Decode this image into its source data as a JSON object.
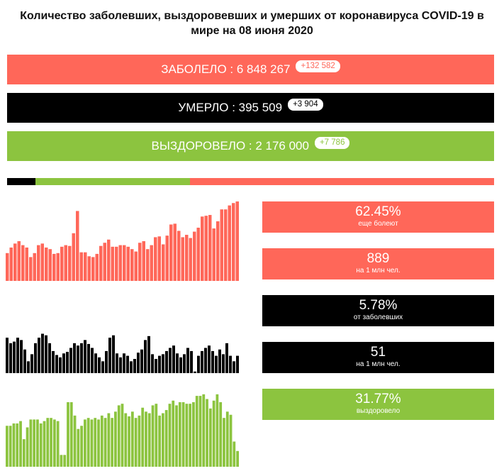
{
  "title": "Количество заболевших, выздоровевших и умерших от коронавируса COVID-19 в мире на 08 июня 2020",
  "colors": {
    "cases": "#ff6759",
    "deaths": "#000000",
    "recovered": "#8cc43f"
  },
  "summary": {
    "cases": {
      "label": "ЗАБОЛЕЛО : 6 848 267",
      "delta": "+132 582"
    },
    "deaths": {
      "label": "УМЕРЛО : 395 509",
      "delta": "+3 904"
    },
    "recovered": {
      "label": "ВЫЗДОРОВЕЛО : 2 176 000",
      "delta": "+7 786"
    }
  },
  "share_bar": {
    "deaths_pct": 5.78,
    "recovered_pct": 31.77,
    "active_pct": 62.45
  },
  "stats": [
    {
      "value": "62.45%",
      "caption": "еще болеют"
    },
    {
      "value": "889",
      "caption": "на 1 млн чел."
    },
    {
      "value": "5.78%",
      "caption": "от заболевших"
    },
    {
      "value": "51",
      "caption": "на 1 млн чел."
    },
    {
      "value": "31.77%",
      "caption": "выздоровело"
    }
  ],
  "chart_data": [
    {
      "type": "bar",
      "series": [
        {
          "values": [
            35,
            42,
            47,
            50,
            45,
            42,
            30,
            35,
            45,
            47,
            42,
            40,
            34,
            35,
            43,
            45,
            44,
            60,
            88,
            36,
            36,
            31,
            30,
            34,
            44,
            48,
            52,
            43,
            43,
            45,
            45,
            43,
            40,
            37,
            48,
            50,
            40,
            45,
            55,
            56,
            46,
            57,
            71,
            72,
            63,
            55,
            58,
            54,
            62,
            67,
            81,
            82,
            83,
            66,
            75,
            90,
            90,
            95,
            98,
            100
          ]
        }
      ],
      "ylim": [
        0,
        100
      ]
    },
    {
      "type": "bar",
      "series": [
        {
          "values": [
            45,
            38,
            40,
            45,
            42,
            30,
            15,
            24,
            38,
            45,
            50,
            48,
            38,
            28,
            23,
            20,
            25,
            27,
            32,
            38,
            35,
            38,
            42,
            37,
            32,
            25,
            20,
            15,
            28,
            45,
            48,
            25,
            20,
            25,
            22,
            15,
            18,
            26,
            30,
            42,
            47,
            24,
            18,
            22,
            24,
            28,
            32,
            35,
            25,
            20,
            24,
            32,
            28,
            2,
            22,
            28,
            32,
            35,
            28,
            22,
            30,
            24,
            38,
            22,
            15,
            22
          ]
        }
      ],
      "ylim": [
        0,
        100
      ]
    },
    {
      "type": "bar",
      "series": [
        {
          "values": [
            52,
            52,
            55,
            55,
            58,
            35,
            50,
            60,
            60,
            60,
            55,
            58,
            62,
            62,
            60,
            58,
            15,
            15,
            82,
            82,
            65,
            48,
            52,
            60,
            62,
            60,
            62,
            60,
            65,
            62,
            68,
            62,
            70,
            78,
            80,
            68,
            64,
            70,
            62,
            65,
            75,
            70,
            68,
            78,
            80,
            65,
            68,
            72,
            80,
            84,
            78,
            82,
            82,
            80,
            80,
            82,
            90,
            90,
            92,
            86,
            74,
            84,
            92,
            82,
            62,
            70,
            66,
            32,
            20
          ]
        }
      ],
      "ylim": [
        0,
        100
      ]
    }
  ]
}
